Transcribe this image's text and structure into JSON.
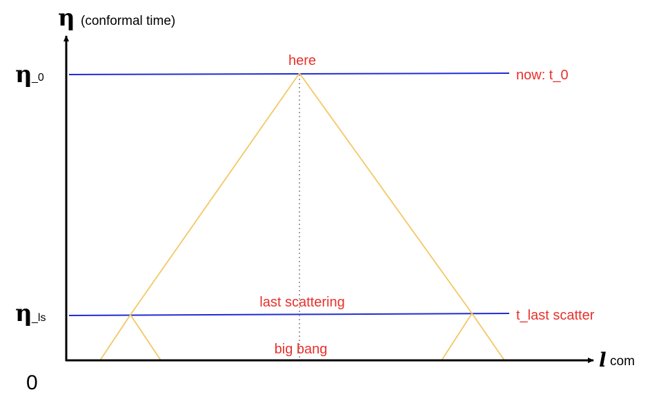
{
  "axes": {
    "y_symbol": "η",
    "y_label": "(conformal time)",
    "x_symbol": "l",
    "x_label": "com",
    "origin_label": "0"
  },
  "ticks": {
    "eta0_symbol": "η",
    "eta0_sub": "_0",
    "etals_symbol": "η",
    "etals_sub": "_ls"
  },
  "labels": {
    "here": "here",
    "now": "now: t_0",
    "last_scattering": "last scattering",
    "t_last_scatter": "t_last scatter",
    "big_bang": "big bang"
  },
  "colors": {
    "axis": "#000000",
    "time_line": "#1f2bd6",
    "light_cone": "#f2c862",
    "worldline": "#8a8a8a",
    "label_red": "#e8302a"
  }
}
